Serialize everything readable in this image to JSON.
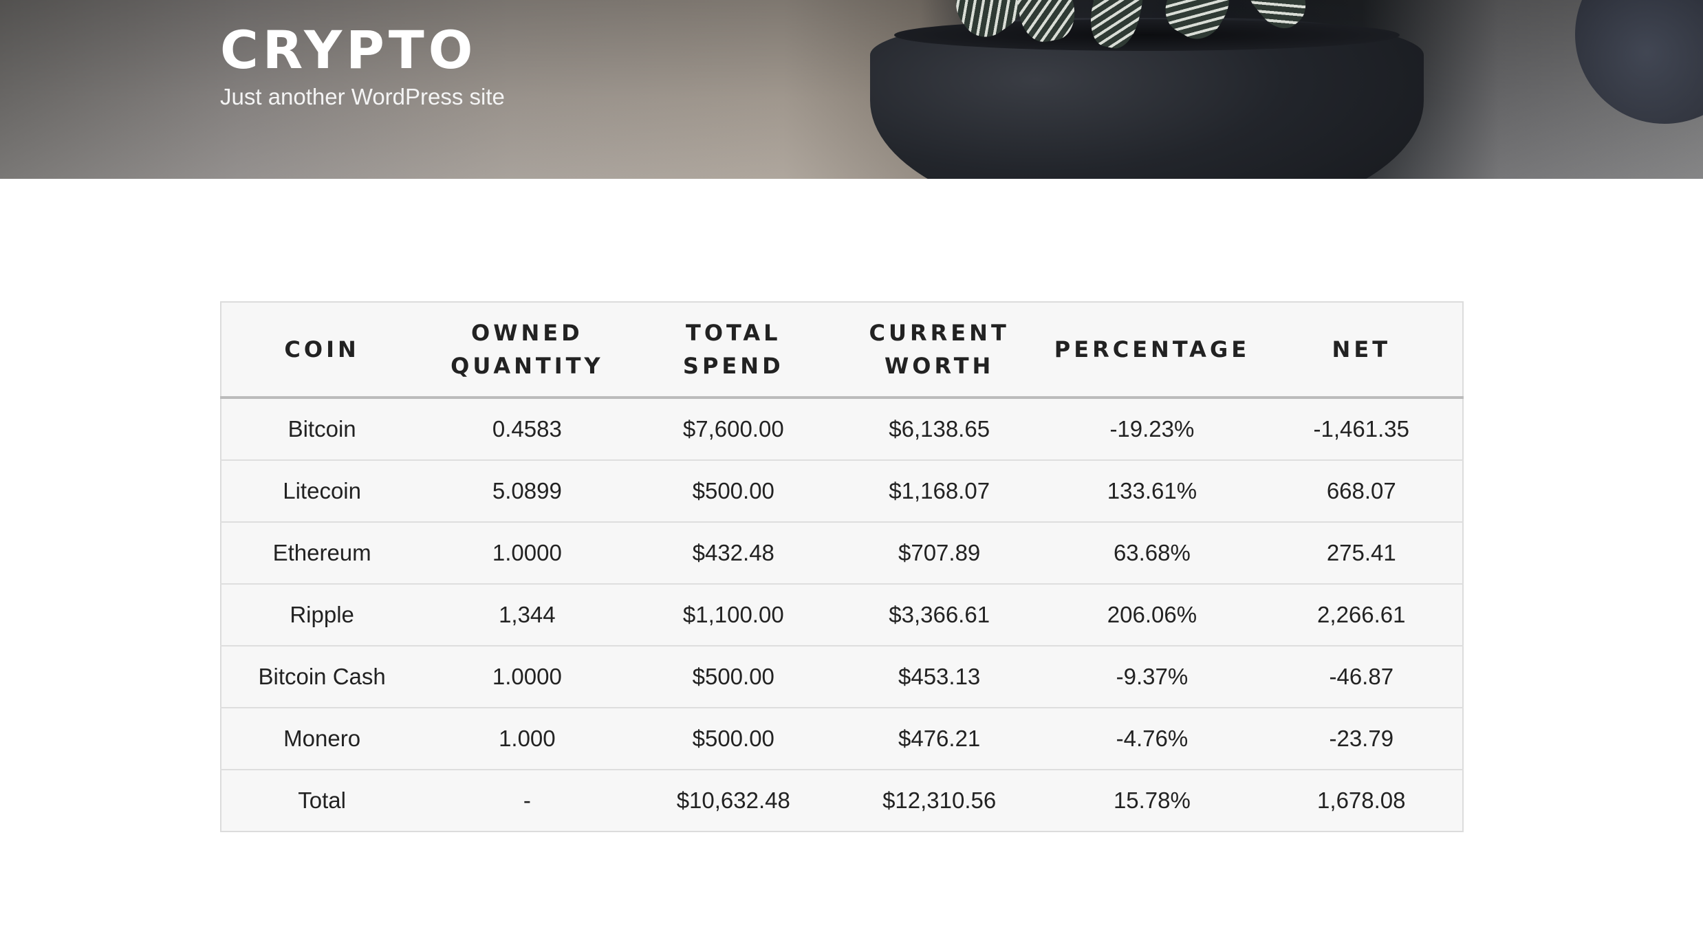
{
  "site": {
    "title": "CRYPTO",
    "description": "Just another WordPress site"
  },
  "table": {
    "headers": [
      {
        "line1": "COIN",
        "line2": ""
      },
      {
        "line1": "OWNED",
        "line2": "QUANTITY"
      },
      {
        "line1": "TOTAL",
        "line2": "SPEND"
      },
      {
        "line1": "CURRENT",
        "line2": "WORTH"
      },
      {
        "line1": "PERCENTAGE",
        "line2": ""
      },
      {
        "line1": "NET",
        "line2": ""
      }
    ],
    "rows": [
      [
        "Bitcoin",
        "0.4583",
        "$7,600.00",
        "$6,138.65",
        "-19.23%",
        "-1,461.35"
      ],
      [
        "Litecoin",
        "5.0899",
        "$500.00",
        "$1,168.07",
        "133.61%",
        "668.07"
      ],
      [
        "Ethereum",
        "1.0000",
        "$432.48",
        "$707.89",
        "63.68%",
        "275.41"
      ],
      [
        "Ripple",
        "1,344",
        "$1,100.00",
        "$3,366.61",
        "206.06%",
        "2,266.61"
      ],
      [
        "Bitcoin Cash",
        "1.0000",
        "$500.00",
        "$453.13",
        "-9.37%",
        "-46.87"
      ],
      [
        "Monero",
        "1.000",
        "$500.00",
        "$476.21",
        "-4.76%",
        "-23.79"
      ],
      [
        "Total",
        "-",
        "$10,632.48",
        "$12,310.56",
        "15.78%",
        "1,678.08"
      ]
    ]
  }
}
